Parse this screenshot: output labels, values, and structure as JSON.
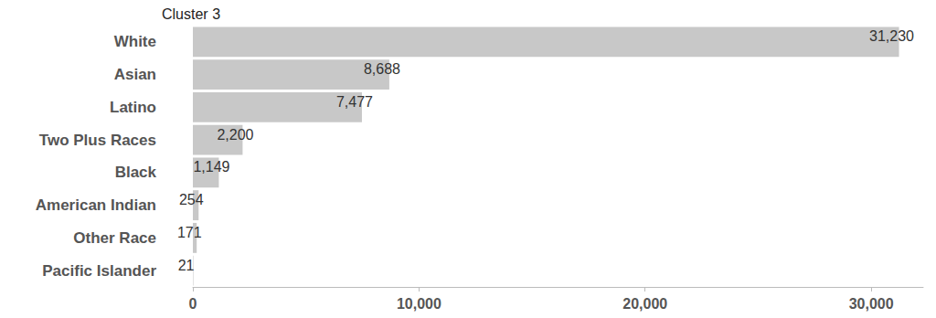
{
  "chart_data": {
    "type": "bar",
    "title": "Cluster 3",
    "orientation": "horizontal",
    "categories": [
      "White",
      "Asian",
      "Latino",
      "Two Plus Races",
      "Black",
      "American Indian",
      "Other Race",
      "Pacific Islander"
    ],
    "values": [
      31230,
      8688,
      7477,
      2200,
      1149,
      254,
      171,
      21
    ],
    "value_labels": [
      "31,230",
      "8,688",
      "7,477",
      "2,200",
      "1,149",
      "254",
      "171",
      "21"
    ],
    "color": "#c8c8c8",
    "xlim": [
      0,
      32300
    ],
    "xticks": [
      0,
      {
        "value": 10000,
        "label": "10,000"
      },
      {
        "value": 20000,
        "label": "20,000"
      },
      {
        "value": 30000,
        "label": "30,000"
      }
    ],
    "grid": false,
    "data_labels": true
  }
}
